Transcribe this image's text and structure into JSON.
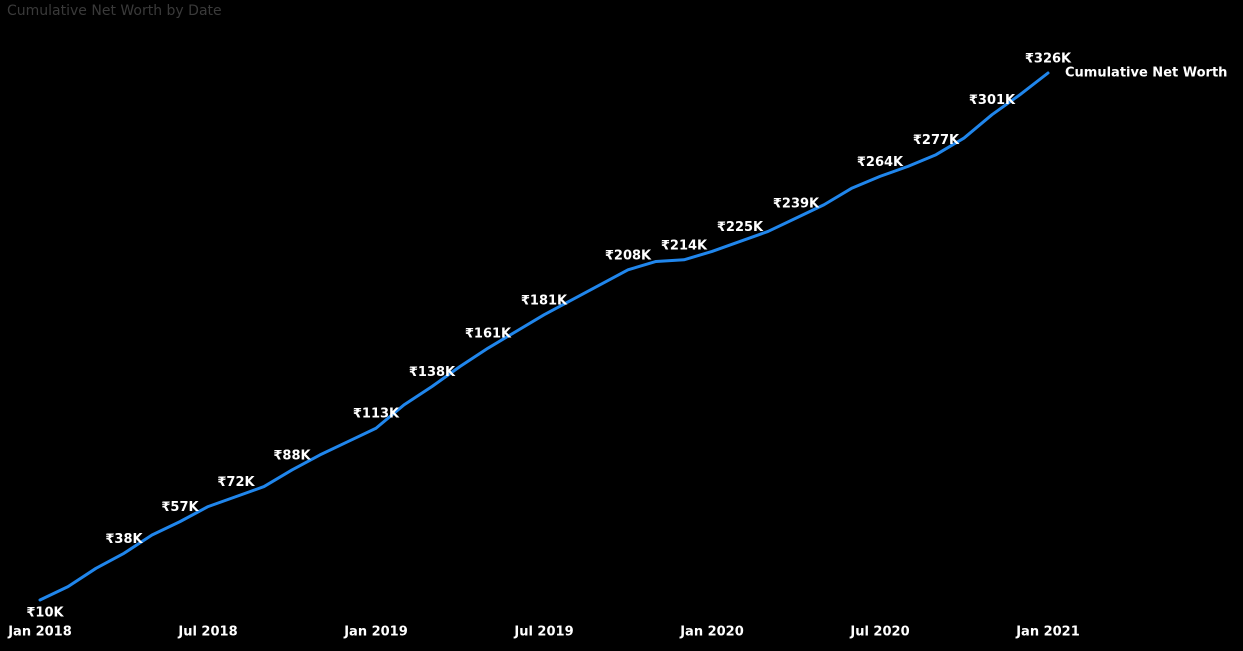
{
  "chart_data": {
    "type": "line",
    "title": "Cumulative Net Worth by Date",
    "categories": [
      "Jan 2018",
      null,
      null,
      null,
      null,
      null,
      "Jul 2018",
      null,
      null,
      null,
      null,
      null,
      "Jan 2019",
      null,
      null,
      null,
      null,
      null,
      "Jul 2019",
      null,
      null,
      null,
      null,
      null,
      "Jan 2020",
      null,
      null,
      null,
      null,
      null,
      "Jul 2020",
      null,
      null,
      null,
      null,
      null,
      "Jan 2021"
    ],
    "series": [
      {
        "name": "Cumulative Net Worth",
        "color": "#2086ec",
        "values": [
          10000,
          18000,
          29000,
          38000,
          49000,
          57000,
          66000,
          72000,
          78000,
          88000,
          97000,
          105000,
          113000,
          127000,
          138000,
          150000,
          161000,
          171000,
          181000,
          190000,
          199000,
          208000,
          213000,
          214000,
          219000,
          225000,
          231000,
          239000,
          247000,
          257000,
          264000,
          270000,
          277000,
          287000,
          301000,
          313000,
          326000
        ],
        "value_labels": [
          "₹10K",
          null,
          null,
          "₹38K",
          null,
          "₹57K",
          null,
          "₹72K",
          null,
          "₹88K",
          null,
          null,
          "₹113K",
          null,
          "₹138K",
          null,
          "₹161K",
          null,
          "₹181K",
          null,
          null,
          "₹208K",
          null,
          "₹214K",
          null,
          "₹225K",
          null,
          "₹239K",
          null,
          null,
          "₹264K",
          null,
          "₹277K",
          null,
          "₹301K",
          null,
          "₹326K"
        ]
      }
    ],
    "ylim": [
      10000,
      326000
    ]
  }
}
